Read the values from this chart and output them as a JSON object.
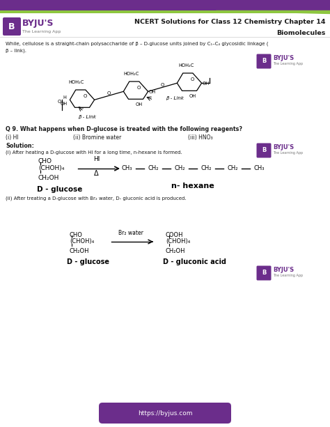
{
  "title_line1": "NCERT Solutions for Class 12 Chemistry Chapter 14",
  "title_line2": "Biomolecules",
  "title_color": "#1a1a1a",
  "header_bg": "#6b2d8b",
  "header_green": "#8dc63f",
  "byju_text": "BYJU'S",
  "byju_subtitle": "The Learning App",
  "byju_color": "#6b2d8b",
  "footer_text": "https://byjus.com",
  "footer_bg": "#6b2d8b",
  "body_bg": "#ffffff",
  "line1": "While, cellulose is a straight-chain polysaccharide of β – D-glucose units joined by C₁–C₄ glycosidic linkage (",
  "line2": "β – link).",
  "q9_text": "Q 9. What happens when D-glucose is treated with the following reagents?",
  "q9_i": "(i) HI",
  "q9_ii": "(ii) Bromine water",
  "q9_iii": "(iii) HNO₃",
  "solution_label": "Solution:",
  "sol_i_text": "(i) After heating a D-glucose with HI for a long time, n-hexane is formed.",
  "sol_ii_text": "(ii) After treating a D-glucose with Br₂ water, D- gluconic acid is produced.",
  "text_color": "#1a1a1a",
  "chain": [
    "CH₃",
    "CH₂",
    "CH₂",
    "CH₂",
    "CH₂",
    "CH₃"
  ]
}
